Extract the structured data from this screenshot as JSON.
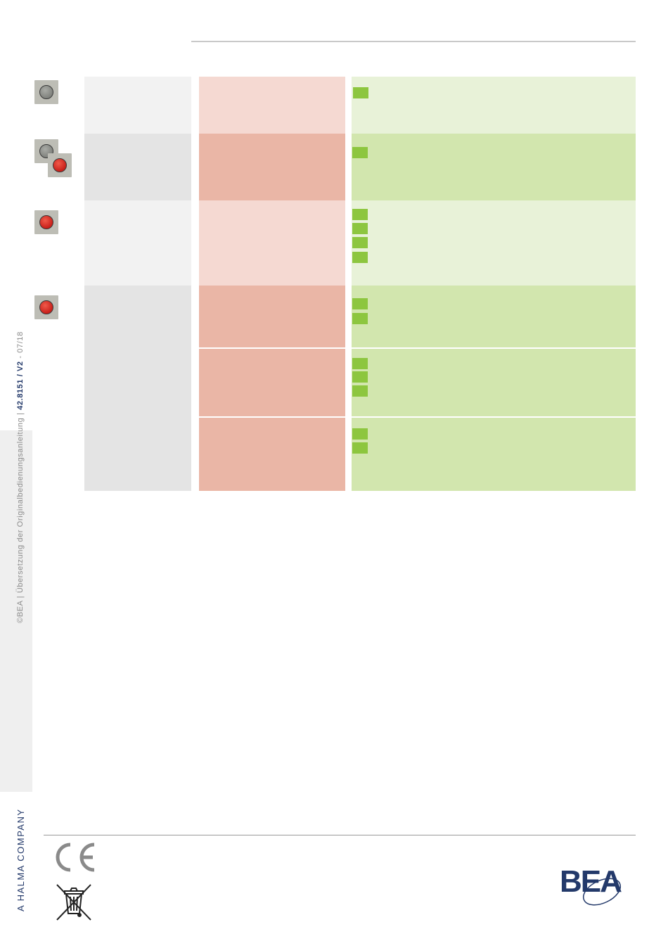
{
  "sidebar": {
    "copyright": "©BEA",
    "separator1": "|",
    "title": "Übersetzung der Originalbedienungsanleitung",
    "separator2": "|",
    "doc_number": "42.8151 / V2",
    "date_sep": " - ",
    "date": "07/18"
  },
  "footer": {
    "company_tag": "A HALMA COMPANY",
    "ce_mark": "CE",
    "logo_text": "BEA"
  },
  "colors": {
    "accent_green": "#8dc63f",
    "led_red": "#d42b22",
    "led_grey": "#8c8e89",
    "brand_blue": "#23396a"
  },
  "icons": [
    "led-off-icon",
    "led-off-red-icon",
    "led-red-icon",
    "led-red-icon",
    "ce-mark-icon",
    "weee-bin-icon",
    "bea-logo"
  ]
}
